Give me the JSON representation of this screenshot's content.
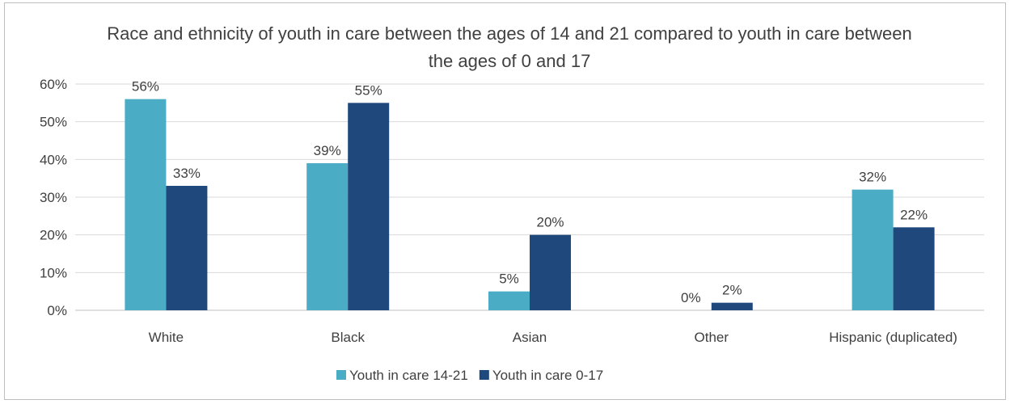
{
  "chart_data": {
    "type": "bar",
    "title": "Race and ethnicity of youth in care between the ages of 14 and 21 compared to youth in care between the ages of 0 and 17",
    "categories": [
      "White",
      "Black",
      "Asian",
      "Other",
      "Hispanic (duplicated)"
    ],
    "series": [
      {
        "name": "Youth in care 14-21",
        "color": "#4bacc6",
        "values": [
          56,
          39,
          5,
          0,
          32
        ],
        "labels": [
          "56%",
          "39%",
          "5%",
          "0%",
          "32%"
        ]
      },
      {
        "name": "Youth in care 0-17",
        "color": "#1f497d",
        "values": [
          33,
          55,
          20,
          2,
          22
        ],
        "labels": [
          "33%",
          "55%",
          "20%",
          "2%",
          "22%"
        ]
      }
    ],
    "ylim": [
      0,
      60
    ],
    "yticks": [
      0,
      10,
      20,
      30,
      40,
      50,
      60
    ],
    "ytick_labels": [
      "0%",
      "10%",
      "20%",
      "30%",
      "40%",
      "50%",
      "60%"
    ],
    "grid": true,
    "legend_position": "bottom",
    "xlabel": "",
    "ylabel": ""
  }
}
